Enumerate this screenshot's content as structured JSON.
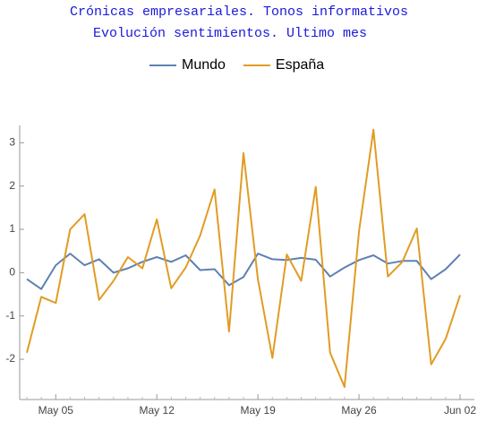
{
  "chart_data": {
    "type": "line",
    "title": "Crónicas empresariales. Tonos informativos",
    "subtitle": "Evolución sentimientos. Ultimo mes",
    "categories": [
      null,
      null,
      "May 05",
      null,
      null,
      null,
      null,
      null,
      null,
      "May 12",
      null,
      null,
      null,
      null,
      null,
      null,
      "May 19",
      null,
      null,
      null,
      null,
      null,
      null,
      "May 26",
      null,
      null,
      null,
      null,
      null,
      null,
      "Jun 02"
    ],
    "series": [
      {
        "name": "Mundo",
        "color": "#5e81b5",
        "values": [
          -0.15,
          -0.38,
          0.17,
          0.44,
          0.17,
          0.31,
          0.0,
          0.1,
          0.25,
          0.36,
          0.25,
          0.4,
          0.06,
          0.08,
          -0.29,
          -0.1,
          0.44,
          0.31,
          0.29,
          0.34,
          0.3,
          -0.09,
          0.12,
          0.29,
          0.4,
          0.21,
          0.27,
          0.27,
          -0.15,
          0.08,
          0.42
        ]
      },
      {
        "name": "España",
        "color": "#e19c24",
        "values": [
          -1.85,
          -0.56,
          -0.7,
          1.0,
          1.35,
          -0.63,
          -0.19,
          0.36,
          0.1,
          1.23,
          -0.36,
          0.12,
          0.86,
          1.92,
          -1.36,
          2.76,
          -0.15,
          -1.97,
          0.42,
          -0.19,
          1.98,
          -1.85,
          -2.64,
          0.96,
          3.3,
          -0.09,
          0.25,
          1.02,
          -2.12,
          -1.53,
          -0.52
        ]
      }
    ],
    "ylim": [
      -2.93,
      3.4
    ],
    "yticks": [
      -2,
      -1,
      0,
      1,
      2,
      3
    ],
    "legend": "top"
  }
}
